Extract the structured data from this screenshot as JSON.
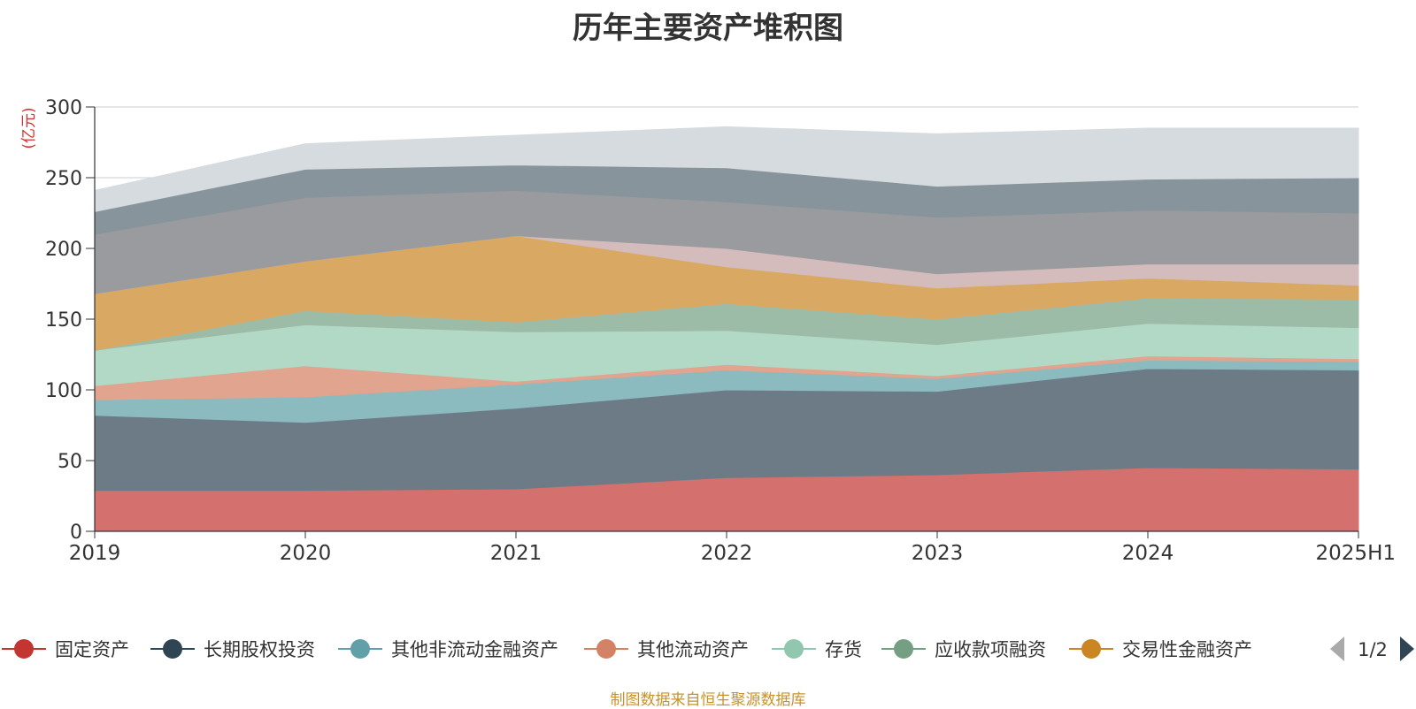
{
  "chart_data": {
    "type": "area",
    "stacked": true,
    "title": "历年主要资产堆积图",
    "ylabel": "(亿元)",
    "xlabel": "",
    "categories": [
      "2019",
      "2020",
      "2021",
      "2022",
      "2023",
      "2024",
      "2025H1"
    ],
    "ylim": [
      0,
      300
    ],
    "yticks": [
      0,
      50,
      100,
      150,
      200,
      250,
      300
    ],
    "grid": true,
    "legend_position": "bottom",
    "series": [
      {
        "name": "固定资产",
        "color": "#d4706d",
        "values": [
          29,
          29,
          30,
          38,
          40,
          45,
          44
        ]
      },
      {
        "name": "长期股权投资",
        "color": "#6d7b86",
        "values": [
          53,
          48,
          57,
          62,
          59,
          70,
          70
        ]
      },
      {
        "name": "其他非流动金融资产",
        "color": "#8bbabf",
        "values": [
          11,
          18,
          17,
          14,
          9,
          6,
          6
        ]
      },
      {
        "name": "其他流动资产",
        "color": "#e0a48f",
        "values": [
          10,
          22,
          2,
          4,
          2,
          3,
          2
        ]
      },
      {
        "name": "存货",
        "color": "#b2d8c6",
        "values": [
          25,
          29,
          35,
          24,
          22,
          23,
          22
        ]
      },
      {
        "name": "应收款项融资",
        "color": "#9dbca8",
        "values": [
          0,
          10,
          7,
          19,
          18,
          18,
          20
        ]
      },
      {
        "name": "交易性金融资产",
        "color": "#d9a964",
        "values": [
          40,
          35,
          61,
          26,
          22,
          14,
          10
        ]
      },
      {
        "name": "",
        "color": "#d4bcbc",
        "values": [
          0,
          0,
          0,
          13,
          10,
          10,
          15
        ]
      },
      {
        "name": "",
        "color": "#9a9b9f",
        "values": [
          42,
          45,
          32,
          33,
          40,
          38,
          36
        ]
      },
      {
        "name": "",
        "color": "#87949b",
        "values": [
          16,
          20,
          18,
          24,
          22,
          22,
          25
        ]
      },
      {
        "name": "",
        "color": "#d6dbe0",
        "values": [
          15,
          18,
          21,
          29,
          37,
          36,
          35
        ]
      }
    ]
  },
  "legend": {
    "items": [
      {
        "label": "固定资产",
        "color": "#c23531"
      },
      {
        "label": "长期股权投资",
        "color": "#2f4554"
      },
      {
        "label": "其他非流动金融资产",
        "color": "#61a0a8"
      },
      {
        "label": "其他流动资产",
        "color": "#d48265"
      },
      {
        "label": "存货",
        "color": "#91c7ae"
      },
      {
        "label": "应收款项融资",
        "color": "#749f83"
      },
      {
        "label": "交易性金融资产",
        "color": "#ca8622"
      }
    ],
    "page_indicator": "1/2",
    "prev_icon": "triangle-left-icon",
    "next_icon": "triangle-right-icon"
  },
  "footer": {
    "source": "制图数据来自恒生聚源数据库"
  }
}
